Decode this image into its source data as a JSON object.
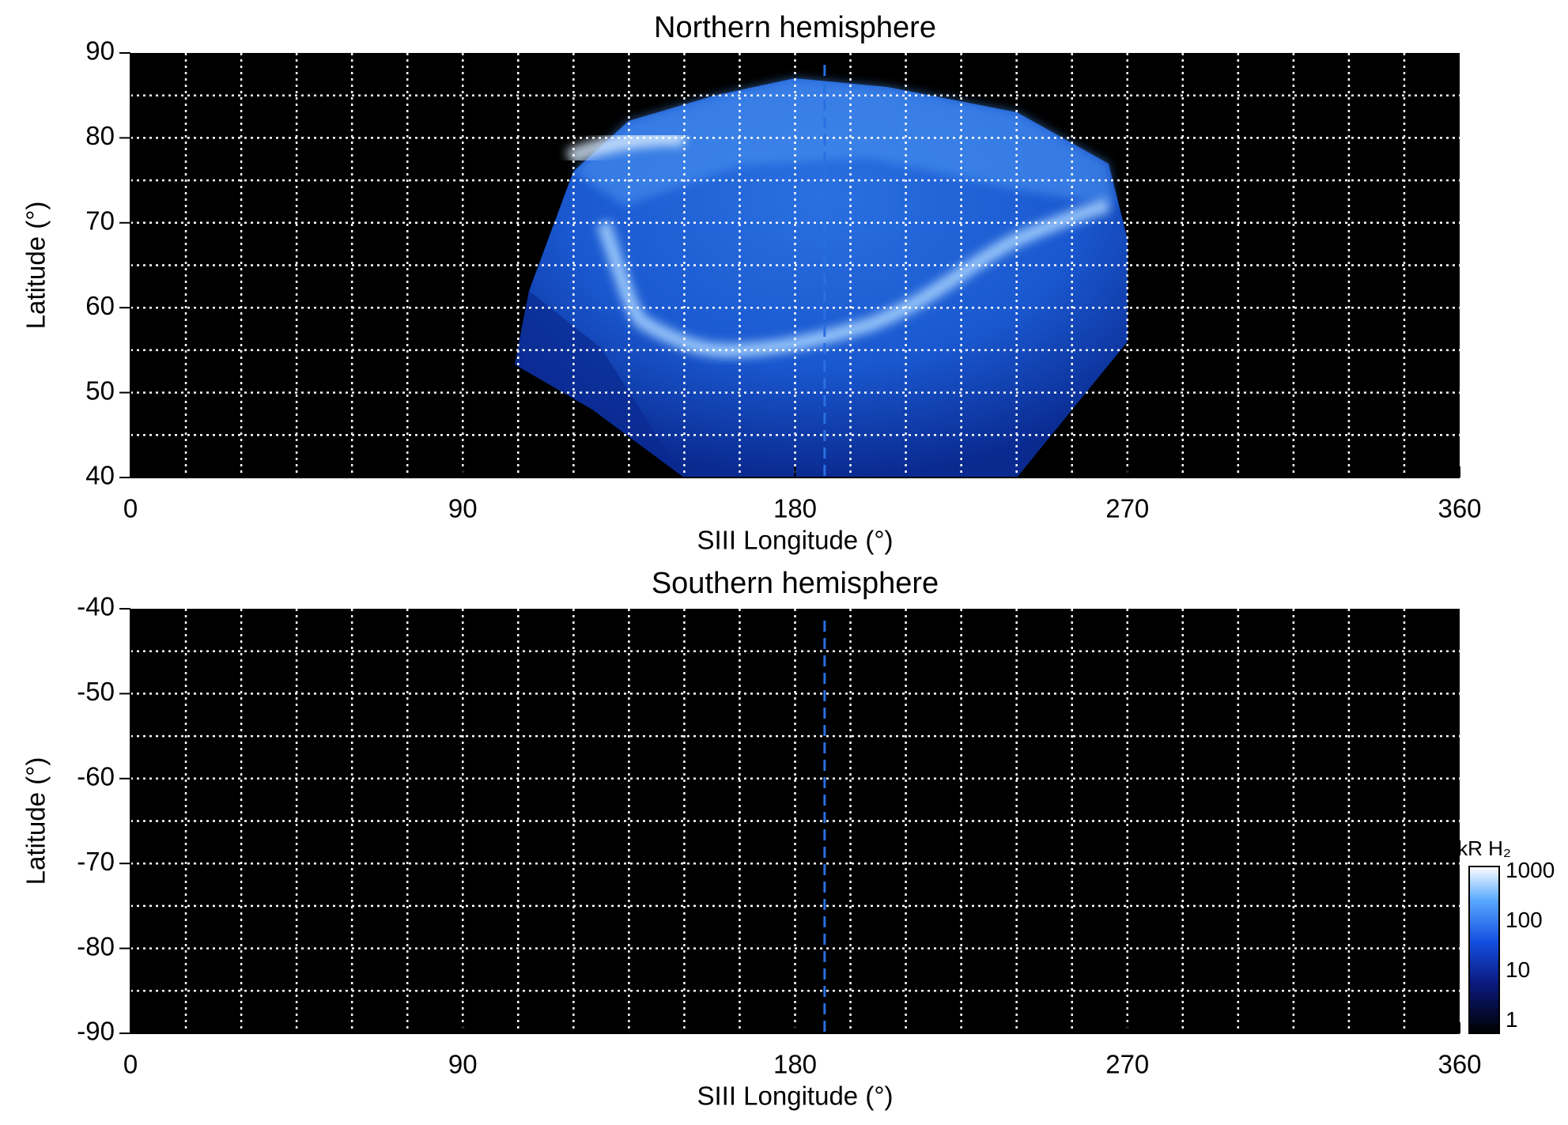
{
  "chart_data": [
    {
      "type": "heatmap",
      "title": "Northern hemisphere",
      "x_label": "SIII Longitude (°)",
      "y_label": "Latitude (°)",
      "xlim": [
        0,
        360
      ],
      "xticks": [
        0,
        90,
        180,
        270,
        360
      ],
      "ylim": [
        40,
        90
      ],
      "yticks": [
        40,
        50,
        60,
        70,
        80,
        90
      ],
      "xgrid": [
        15,
        30,
        45,
        60,
        75,
        90,
        105,
        120,
        135,
        150,
        165,
        180,
        195,
        210,
        225,
        240,
        255,
        270,
        285,
        300,
        315,
        330,
        345
      ],
      "ygrid": [
        45,
        50,
        55,
        60,
        65,
        70,
        75,
        80,
        85
      ],
      "marker_x": 188
    },
    {
      "type": "heatmap",
      "title": "Southern hemisphere",
      "x_label": "SIII Longitude (°)",
      "y_label": "Latitude (°)",
      "xlim": [
        0,
        360
      ],
      "xticks": [
        0,
        90,
        180,
        270,
        360
      ],
      "ylim": [
        -90,
        -40
      ],
      "yticks": [
        -90,
        -80,
        -70,
        -60,
        -50,
        -40
      ],
      "xgrid": [
        15,
        30,
        45,
        60,
        75,
        90,
        105,
        120,
        135,
        150,
        165,
        180,
        195,
        210,
        225,
        240,
        255,
        270,
        285,
        300,
        315,
        330,
        345
      ],
      "ygrid": [
        -85,
        -80,
        -75,
        -70,
        -65,
        -60,
        -55,
        -50,
        -45
      ],
      "marker_x": 188,
      "colorbar": {
        "label": "kR H₂",
        "log_scale": true,
        "lim": [
          0.57,
          1270
        ],
        "ticks": [
          1,
          10,
          100,
          1000
        ]
      }
    }
  ]
}
